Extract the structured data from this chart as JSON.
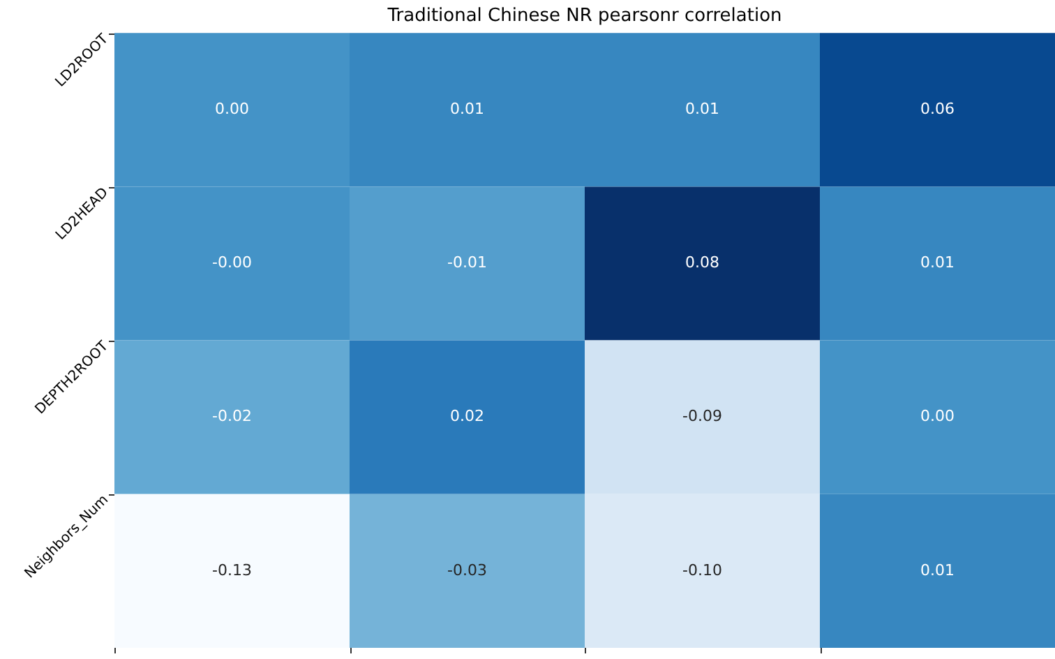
{
  "chart_data": {
    "type": "heatmap",
    "title": "Traditional Chinese NR pearsonr correlation",
    "categories": [
      null,
      null,
      null,
      null
    ],
    "y_categories": [
      "LD2ROOT",
      "LD2HEAD",
      "DEPTH2ROOT",
      "Neighbors_Num"
    ],
    "cells": [
      [
        0.0,
        0.01,
        0.01,
        0.06
      ],
      [
        0.0,
        -0.01,
        0.08,
        0.01
      ],
      [
        -0.02,
        0.02,
        -0.09,
        0.0
      ],
      [
        -0.13,
        -0.03,
        -0.1,
        0.01
      ]
    ],
    "cell_labels": [
      [
        "0.00",
        "0.01",
        "0.01",
        "0.06"
      ],
      [
        "-0.00",
        "-0.01",
        "0.08",
        "0.01"
      ],
      [
        "-0.02",
        "0.02",
        "-0.09",
        "0.00"
      ],
      [
        "-0.13",
        "-0.03",
        "-0.10",
        "0.01"
      ]
    ]
  }
}
